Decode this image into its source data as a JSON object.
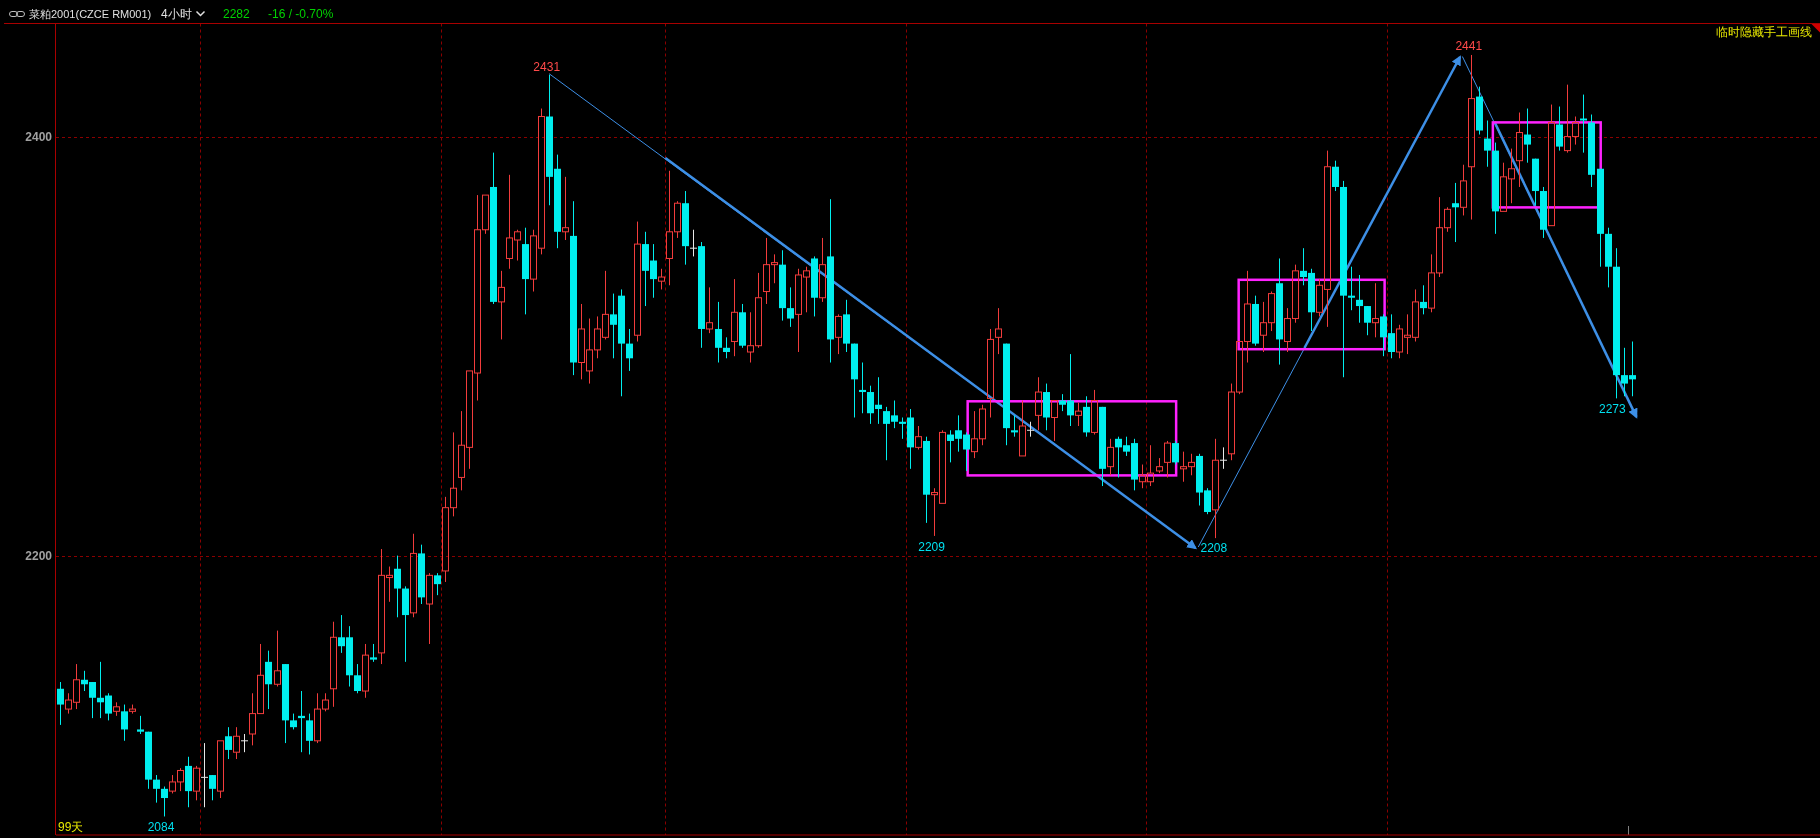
{
  "chart_data": {
    "type": "candlestick",
    "title": "菜粕2001(CZCE RM001)",
    "subtitle": "4小时",
    "categories": [
      null,
      null,
      null,
      null,
      null,
      null,
      null,
      null,
      null,
      null,
      null,
      null,
      null,
      null,
      null,
      null,
      null,
      null,
      null,
      null,
      null,
      null,
      null,
      null,
      null,
      null,
      null,
      null,
      null,
      null,
      null,
      null,
      null,
      null,
      null,
      null,
      null,
      null,
      null,
      null,
      null,
      null,
      null,
      null,
      null,
      null,
      null,
      null,
      null,
      null,
      null,
      null,
      null,
      null,
      null,
      null,
      null,
      null,
      null,
      null,
      null,
      null,
      null,
      null,
      null,
      null,
      null,
      null,
      null,
      null,
      null,
      null,
      null,
      null,
      null,
      null,
      null,
      null,
      null,
      null,
      null,
      null,
      null,
      null,
      null,
      null,
      null,
      null,
      null,
      null,
      null,
      null,
      null,
      null,
      null,
      null,
      null,
      null,
      null,
      null,
      null,
      null,
      null,
      null,
      null,
      null,
      null,
      null,
      null,
      null,
      null,
      null,
      null,
      null,
      null,
      null,
      null,
      null,
      null,
      null,
      null,
      null,
      null,
      null,
      null,
      null,
      null,
      null,
      null,
      null,
      null,
      null,
      null,
      null,
      null,
      null,
      null,
      null,
      null,
      null,
      null,
      null,
      null,
      null,
      null,
      null,
      null,
      null,
      null,
      null,
      null,
      null,
      null,
      null,
      null,
      null,
      null,
      null,
      null,
      null,
      null,
      null,
      null,
      null,
      null,
      null,
      null,
      null,
      null,
      null,
      null,
      null,
      null,
      null,
      null,
      null,
      null,
      null,
      null,
      null,
      null,
      null,
      null,
      null,
      null,
      null,
      null,
      null,
      null,
      null,
      null,
      null,
      null,
      null,
      null,
      null,
      null,
      null,
      null,
      null,
      null,
      null,
      null,
      null,
      null,
      null,
      null,
      null,
      null,
      null,
      null,
      null,
      null,
      null,
      null,
      null,
      null,
      null,
      null,
      null
    ],
    "ohlc": [
      [
        2140,
        2143,
        2124,
        2133
      ],
      [
        2131,
        2138,
        2129,
        2135
      ],
      [
        2134,
        2151,
        2131,
        2144
      ],
      [
        2144,
        2148,
        2139,
        2142
      ],
      [
        2143,
        2143,
        2127,
        2136
      ],
      [
        2136,
        2152,
        2127,
        2134
      ],
      [
        2137,
        2138,
        2126,
        2129
      ],
      [
        2130,
        2134,
        2128,
        2132
      ],
      [
        2130,
        2133,
        2117,
        2122
      ],
      [
        2130,
        2133,
        2129,
        2131
      ],
      [
        2122,
        2128,
        2120,
        2121
      ],
      [
        2121,
        2121,
        2096,
        2100
      ],
      [
        2100,
        2102,
        2090,
        2096
      ],
      [
        2096,
        2097,
        2084,
        2092
      ],
      [
        2095,
        2102,
        2094,
        2099
      ],
      [
        2099,
        2105,
        2095,
        2104
      ],
      [
        2106,
        2110,
        2088,
        2095
      ],
      [
        2095,
        2106,
        2091,
        2105
      ],
      [
        2101,
        2116,
        2088,
        2101
      ],
      [
        2102,
        2102,
        2091,
        2096
      ],
      [
        2095,
        2117,
        2092,
        2117
      ],
      [
        2119,
        2123,
        2109,
        2113
      ],
      [
        2112,
        2123,
        2109,
        2119
      ],
      [
        2117,
        2120,
        2112,
        2117
      ],
      [
        2120,
        2138,
        2115,
        2129
      ],
      [
        2129,
        2160,
        2129,
        2146
      ],
      [
        2152,
        2157,
        2131,
        2142
      ],
      [
        2142,
        2166,
        2141,
        2148
      ],
      [
        2151,
        2151,
        2116,
        2126
      ],
      [
        2126,
        2129,
        2122,
        2123
      ],
      [
        2128,
        2139,
        2112,
        2127
      ],
      [
        2126,
        2129,
        2111,
        2117
      ],
      [
        2117,
        2138,
        2116,
        2131
      ],
      [
        2131,
        2138,
        2130,
        2135
      ],
      [
        2140,
        2170,
        2132,
        2163
      ],
      [
        2163,
        2173,
        2156,
        2159
      ],
      [
        2163,
        2168,
        2141,
        2146
      ],
      [
        2146,
        2151,
        2138,
        2139
      ],
      [
        2139,
        2160,
        2136,
        2155
      ],
      [
        2154,
        2160,
        2152,
        2153
      ],
      [
        2156,
        2203,
        2151,
        2191
      ],
      [
        2190,
        2195,
        2179,
        2191
      ],
      [
        2194,
        2200,
        2172,
        2185
      ],
      [
        2185,
        2186,
        2152,
        2173
      ],
      [
        2174,
        2210,
        2172,
        2201
      ],
      [
        2201,
        2205,
        2178,
        2181
      ],
      [
        2178,
        2192,
        2160,
        2191
      ],
      [
        2191,
        2192,
        2182,
        2187
      ],
      [
        2193,
        2227,
        2188,
        2222
      ],
      [
        2222,
        2257,
        2218,
        2231
      ],
      [
        2236,
        2267,
        2230,
        2251
      ],
      [
        2250,
        2286,
        2240,
        2286
      ],
      [
        2285,
        2371,
        2272,
        2354
      ],
      [
        2354,
        2371,
        2352,
        2371
      ],
      [
        2375,
        2392,
        2318,
        2319
      ],
      [
        2319,
        2334,
        2301,
        2326
      ],
      [
        2340,
        2381,
        2335,
        2350
      ],
      [
        2349,
        2354,
        2339,
        2353
      ],
      [
        2347,
        2355,
        2313,
        2330
      ],
      [
        2330,
        2354,
        2324,
        2351
      ],
      [
        2345,
        2414,
        2342,
        2410
      ],
      [
        2410,
        2431,
        2366,
        2380
      ],
      [
        2384,
        2391,
        2345,
        2353
      ],
      [
        2353,
        2380,
        2349,
        2355
      ],
      [
        2351,
        2368,
        2284,
        2290
      ],
      [
        2290,
        2318,
        2282,
        2306
      ],
      [
        2286,
        2311,
        2280,
        2296
      ],
      [
        2296,
        2312,
        2292,
        2306
      ],
      [
        2302,
        2334,
        2301,
        2313
      ],
      [
        2313,
        2323,
        2292,
        2308
      ],
      [
        2322,
        2325,
        2274,
        2299
      ],
      [
        2299,
        2306,
        2286,
        2292
      ],
      [
        2303,
        2358,
        2300,
        2347
      ],
      [
        2347,
        2353,
        2317,
        2334
      ],
      [
        2339,
        2347,
        2321,
        2330
      ],
      [
        2329,
        2335,
        2325,
        2331
      ],
      [
        2340,
        2383,
        2327,
        2353
      ],
      [
        2353,
        2368,
        2350,
        2367
      ],
      [
        2367,
        2373,
        2337,
        2346
      ],
      [
        2345,
        2354,
        2341,
        2345
      ],
      [
        2346,
        2348,
        2297,
        2306
      ],
      [
        2306,
        2326,
        2304,
        2309
      ],
      [
        2306,
        2319,
        2290,
        2297
      ],
      [
        2297,
        2302,
        2292,
        2295
      ],
      [
        2300,
        2330,
        2293,
        2314
      ],
      [
        2314,
        2318,
        2297,
        2298
      ],
      [
        2295,
        2314,
        2290,
        2298
      ],
      [
        2298,
        2333,
        2297,
        2321
      ],
      [
        2324,
        2350,
        2318,
        2337
      ],
      [
        2337,
        2342,
        2328,
        2338
      ],
      [
        2337,
        2344,
        2310,
        2316
      ],
      [
        2316,
        2326,
        2307,
        2311
      ],
      [
        2313,
        2335,
        2295,
        2332
      ],
      [
        2331,
        2336,
        2314,
        2334
      ],
      [
        2340,
        2341,
        2312,
        2321
      ],
      [
        2321,
        2350,
        2319,
        2337
      ],
      [
        2341,
        2369,
        2290,
        2301
      ],
      [
        2302,
        2313,
        2294,
        2312
      ],
      [
        2313,
        2320,
        2295,
        2299
      ],
      [
        2299,
        2299,
        2264,
        2282
      ],
      [
        2277,
        2290,
        2266,
        2276
      ],
      [
        2276,
        2279,
        2261,
        2266
      ],
      [
        2270,
        2283,
        2261,
        2268
      ],
      [
        2267,
        2269,
        2244,
        2261
      ],
      [
        2265,
        2272,
        2259,
        2262
      ],
      [
        2262,
        2264,
        2254,
        2261
      ],
      [
        2264,
        2268,
        2240,
        2250
      ],
      [
        2250,
        2260,
        2249,
        2255
      ],
      [
        2253,
        2255,
        2215,
        2228
      ],
      [
        2228,
        2231,
        2209,
        2229
      ],
      [
        2224,
        2258,
        2224,
        2257
      ],
      [
        2256,
        2258,
        2243,
        2253
      ],
      [
        2258,
        2265,
        2248,
        2254
      ],
      [
        2256,
        2257,
        2239,
        2249
      ],
      [
        2248,
        2267,
        2245,
        2254
      ],
      [
        2254,
        2270,
        2251,
        2268
      ],
      [
        2273,
        2306,
        2264,
        2301
      ],
      [
        2302,
        2316,
        2294,
        2306
      ],
      [
        2299,
        2299,
        2251,
        2259
      ],
      [
        2258,
        2265,
        2255,
        2257
      ],
      [
        2246,
        2272,
        2246,
        2260
      ],
      [
        2258,
        2262,
        2255,
        2258
      ],
      [
        2265,
        2283,
        2258,
        2276
      ],
      [
        2276,
        2280,
        2258,
        2264
      ],
      [
        2264,
        2272,
        2253,
        2272
      ],
      [
        2272,
        2275,
        2267,
        2270
      ],
      [
        2272,
        2294,
        2260,
        2265
      ],
      [
        2265,
        2271,
        2260,
        2267
      ],
      [
        2269,
        2274,
        2255,
        2257
      ],
      [
        2257,
        2277,
        2256,
        2272
      ],
      [
        2269,
        2269,
        2232,
        2240
      ],
      [
        2241,
        2254,
        2237,
        2250
      ],
      [
        2254,
        2255,
        2236,
        2250
      ],
      [
        2251,
        2255,
        2246,
        2248
      ],
      [
        2252,
        2254,
        2230,
        2235
      ],
      [
        2234,
        2242,
        2231,
        2237
      ],
      [
        2234,
        2251,
        2232,
        2238
      ],
      [
        2239,
        2245,
        2238,
        2241
      ],
      [
        2243,
        2253,
        2236,
        2252
      ],
      [
        2252,
        2253,
        2242,
        2243
      ],
      [
        2240,
        2248,
        2234,
        2241
      ],
      [
        2241,
        2247,
        2237,
        2243
      ],
      [
        2246,
        2247,
        2223,
        2229
      ],
      [
        2230,
        2231,
        2219,
        2220
      ],
      [
        2221,
        2254,
        2208,
        2244
      ],
      [
        2244,
        2250,
        2240,
        2244
      ],
      [
        2247,
        2280,
        2244,
        2276
      ],
      [
        2276,
        2300,
        2275,
        2300
      ],
      [
        2300,
        2334,
        2290,
        2318
      ],
      [
        2318,
        2322,
        2298,
        2299
      ],
      [
        2303,
        2319,
        2295,
        2309
      ],
      [
        2309,
        2324,
        2305,
        2323
      ],
      [
        2328,
        2340,
        2289,
        2301
      ],
      [
        2300,
        2316,
        2295,
        2311
      ],
      [
        2311,
        2337,
        2309,
        2334
      ],
      [
        2334,
        2345,
        2327,
        2331
      ],
      [
        2333,
        2335,
        2305,
        2314
      ],
      [
        2314,
        2330,
        2312,
        2327
      ],
      [
        2325,
        2393,
        2307,
        2385
      ],
      [
        2385,
        2388,
        2373,
        2375
      ],
      [
        2375,
        2378,
        2283,
        2322
      ],
      [
        2322,
        2336,
        2315,
        2321
      ],
      [
        2320,
        2332,
        2309,
        2317
      ],
      [
        2317,
        2317,
        2303,
        2309
      ],
      [
        2309,
        2328,
        2302,
        2311
      ],
      [
        2312,
        2313,
        2293,
        2302
      ],
      [
        2304,
        2313,
        2292,
        2295
      ],
      [
        2295,
        2308,
        2292,
        2306
      ],
      [
        2302,
        2313,
        2294,
        2303
      ],
      [
        2302,
        2325,
        2300,
        2319
      ],
      [
        2319,
        2327,
        2313,
        2316
      ],
      [
        2316,
        2342,
        2314,
        2333
      ],
      [
        2333,
        2370,
        2331,
        2355
      ],
      [
        2355,
        2365,
        2353,
        2364
      ],
      [
        2367,
        2377,
        2348,
        2365
      ],
      [
        2365,
        2386,
        2361,
        2378
      ],
      [
        2385,
        2441,
        2359,
        2419
      ],
      [
        2420,
        2425,
        2401,
        2403
      ],
      [
        2399,
        2408,
        2385,
        2393
      ],
      [
        2393,
        2397,
        2352,
        2363
      ],
      [
        2363,
        2387,
        2363,
        2380
      ],
      [
        2379,
        2394,
        2367,
        2384
      ],
      [
        2388,
        2412,
        2375,
        2402
      ],
      [
        2401,
        2414,
        2387,
        2396
      ],
      [
        2389,
        2389,
        2366,
        2373
      ],
      [
        2373,
        2375,
        2350,
        2354
      ],
      [
        2356,
        2416,
        2356,
        2407
      ],
      [
        2406,
        2415,
        2393,
        2395
      ],
      [
        2393,
        2426,
        2392,
        2400
      ],
      [
        2400,
        2410,
        2396,
        2407
      ],
      [
        2409,
        2421,
        2392,
        2408
      ],
      [
        2407,
        2411,
        2375,
        2381
      ],
      [
        2384,
        2384,
        2336,
        2352
      ],
      [
        2352,
        2355,
        2326,
        2336
      ],
      [
        2336,
        2345,
        2273,
        2284
      ],
      [
        2284,
        2297,
        2274,
        2280
      ],
      [
        2284,
        2300,
        2274,
        2282
      ],
      null,
      null,
      null,
      null,
      null,
      null,
      null,
      null,
      null,
      null,
      null,
      null,
      null,
      null,
      null,
      null,
      null,
      null,
      null,
      null,
      null,
      null,
      null
    ],
    "ylim": [
      2076,
      2457
    ],
    "yticks": [
      2200,
      2400
    ],
    "log": true,
    "grid": "y",
    "tick_labels": "y",
    "annotations": [
      "2282",
      "-16 / -0.70%",
      "临时隐藏手工画线",
      "99天",
      "2431",
      "2084",
      "2209",
      "2208",
      "2441",
      "2273"
    ]
  }
}
